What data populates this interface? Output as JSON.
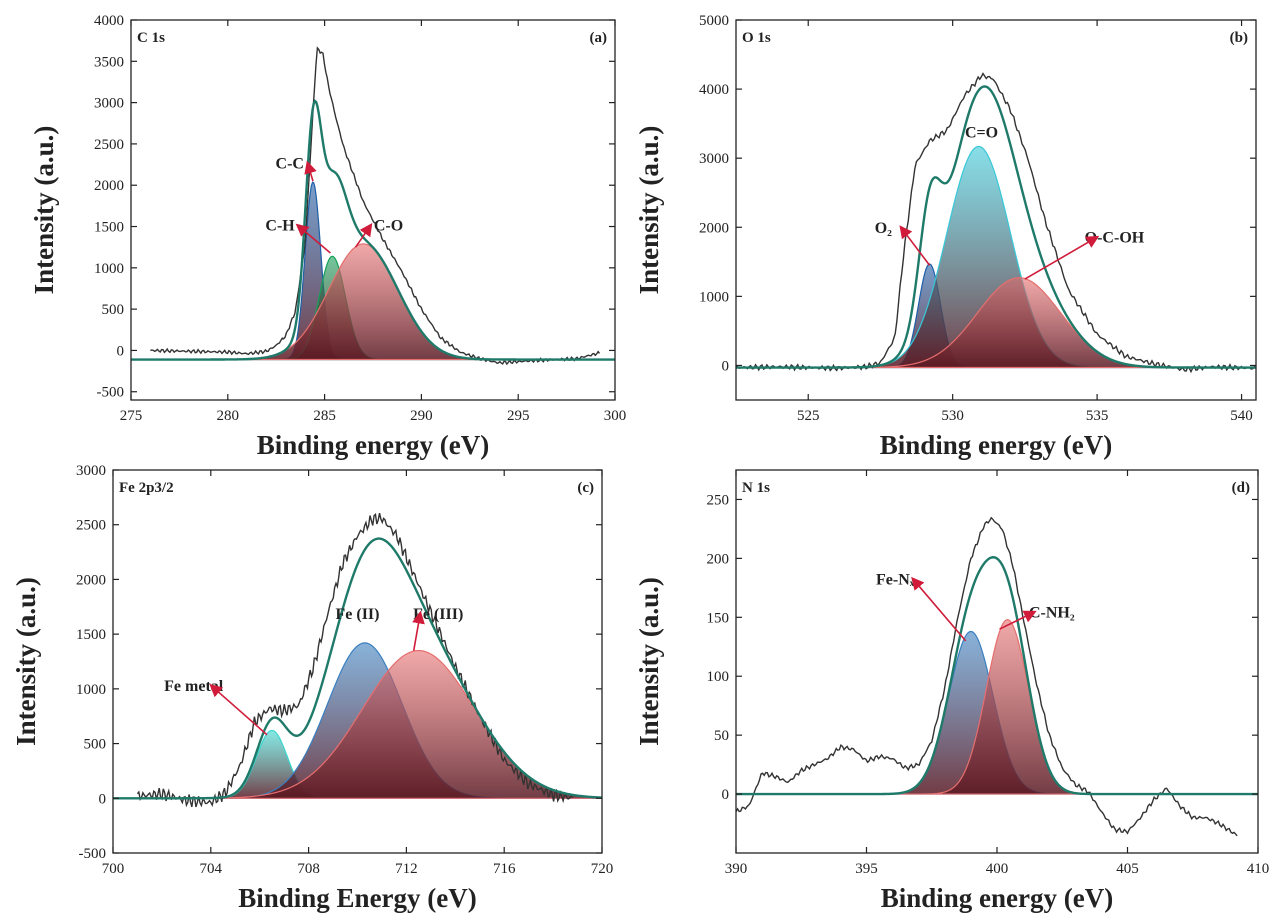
{
  "chart_data": [
    {
      "type": "line",
      "panel": "(a)",
      "element_label": "C 1s",
      "xlabel": "Binding energy (eV)",
      "ylabel": "Intensity (a.u.)",
      "xlim": [
        275,
        300
      ],
      "ylim": [
        -600,
        4000
      ],
      "xticks": [
        275,
        280,
        285,
        290,
        295,
        300
      ],
      "yticks": [
        -500,
        0,
        500,
        1000,
        1500,
        2000,
        2500,
        3000,
        3500,
        4000
      ],
      "baseline": -110,
      "measured_x": [
        276,
        278,
        280,
        281,
        282,
        282.5,
        283,
        283.5,
        284,
        284.3,
        284.6,
        284.9,
        285.2,
        285.6,
        286,
        287,
        288,
        289,
        290,
        291,
        292,
        293,
        294,
        296,
        298,
        299.2
      ],
      "measured_y": [
        0,
        -10,
        -20,
        -40,
        -10,
        60,
        180,
        480,
        1300,
        2500,
        3650,
        3600,
        3200,
        2800,
        2450,
        1800,
        1350,
        950,
        500,
        150,
        -20,
        -100,
        -150,
        -120,
        -100,
        -30
      ],
      "measured_noise": 22,
      "peaks": [
        {
          "name": "C-C",
          "center": 284.4,
          "height": 2150,
          "fwhm": 0.95,
          "color": "#1f5fa8"
        },
        {
          "name": "C-H",
          "center": 285.4,
          "height": 1250,
          "fwhm": 1.6,
          "color": "#17a05a"
        },
        {
          "name": "C-O",
          "center": 287.0,
          "height": 1400,
          "fwhm": 4.2,
          "color": "#e66e6e"
        }
      ],
      "envelope_color": "#1f7a6a",
      "label_positions": [
        {
          "text": "C-C",
          "x": 283.2,
          "y": 2200
        },
        {
          "text": "C-H",
          "x": 282.7,
          "y": 1450
        },
        {
          "text": "C-O",
          "x": 288.3,
          "y": 1450
        }
      ]
    },
    {
      "type": "line",
      "panel": "(b)",
      "element_label": "O 1s",
      "xlabel": "Binding energy (eV)",
      "ylabel": "Intensity (a.u.)",
      "xlim": [
        522.5,
        540.5
      ],
      "ylim": [
        -500,
        5000
      ],
      "xticks": [
        525,
        530,
        535,
        540
      ],
      "yticks": [
        0,
        1000,
        2000,
        3000,
        4000,
        5000
      ],
      "baseline": -30,
      "measured_x": [
        522.5,
        524,
        526,
        527,
        527.5,
        528,
        528.3,
        528.7,
        529.2,
        529.8,
        530.4,
        531,
        531.4,
        532,
        532.6,
        533.2,
        534,
        535,
        536,
        537,
        538,
        539,
        540.5
      ],
      "measured_y": [
        -30,
        -20,
        -40,
        -20,
        40,
        400,
        1600,
        2900,
        3250,
        3400,
        3900,
        4200,
        4150,
        3700,
        3000,
        2100,
        1100,
        450,
        130,
        20,
        -60,
        -20,
        -40
      ],
      "measured_noise": 40,
      "peaks": [
        {
          "name": "O2",
          "center": 529.2,
          "height": 1500,
          "fwhm": 0.9,
          "color": "#1f5fa8"
        },
        {
          "name": "C=O",
          "center": 530.9,
          "height": 3200,
          "fwhm": 2.6,
          "color": "#38c8d8"
        },
        {
          "name": "O-C-OH",
          "center": 532.3,
          "height": 1300,
          "fwhm": 3.4,
          "color": "#e66e6e"
        }
      ],
      "envelope_color": "#1f7a6a",
      "label_positions": [
        {
          "text": "C=O",
          "x": 531.0,
          "y": 3300
        },
        {
          "text": "O₂",
          "x": 527.6,
          "y": 1920
        },
        {
          "text": "O-C-OH",
          "x": 535.6,
          "y": 1780
        }
      ]
    },
    {
      "type": "line",
      "panel": "(c)",
      "element_label": "Fe 2p3/2",
      "xlabel": "Binding Energy (eV)",
      "ylabel": "Intensity (a.u.)",
      "xlim": [
        700,
        720
      ],
      "ylim": [
        -500,
        3000
      ],
      "xticks": [
        700,
        704,
        708,
        712,
        716,
        720
      ],
      "yticks": [
        -500,
        0,
        500,
        1000,
        1500,
        2000,
        2500,
        3000
      ],
      "baseline": 0,
      "measured_x": [
        701,
        702,
        703,
        704,
        704.6,
        705.2,
        705.8,
        706.4,
        707,
        707.6,
        708.2,
        708.8,
        709.4,
        710,
        710.6,
        711,
        711.6,
        712.2,
        713,
        714,
        715,
        716,
        717,
        718,
        718.8
      ],
      "measured_y": [
        20,
        40,
        -20,
        -40,
        50,
        300,
        700,
        820,
        800,
        850,
        1200,
        1700,
        2150,
        2400,
        2550,
        2560,
        2400,
        2100,
        1700,
        1200,
        750,
        350,
        130,
        30,
        0
      ],
      "measured_noise": 60,
      "peaks": [
        {
          "name": "Fe metal",
          "center": 706.5,
          "height": 620,
          "fwhm": 1.5,
          "color": "#38d8d0"
        },
        {
          "name": "Fe (II)",
          "center": 710.3,
          "height": 1420,
          "fwhm": 3.6,
          "color": "#3a7fbf"
        },
        {
          "name": "Fe (III)",
          "center": 712.5,
          "height": 1350,
          "fwhm": 5.4,
          "color": "#e66e6e"
        }
      ],
      "envelope_color": "#1f7a6a",
      "label_positions": [
        {
          "text": "Fe metal",
          "x": 703.3,
          "y": 980
        },
        {
          "text": "Fe (II)",
          "x": 710.0,
          "y": 1640
        },
        {
          "text": "Fe (III)",
          "x": 713.3,
          "y": 1640
        }
      ]
    },
    {
      "type": "line",
      "panel": "(d)",
      "element_label": "N 1s",
      "xlabel": "Binding energy (eV)",
      "ylabel": "Intensity (a.u.)",
      "xlim": [
        390,
        410
      ],
      "ylim": [
        -50,
        275
      ],
      "xticks": [
        390,
        395,
        400,
        405,
        410
      ],
      "yticks": [
        0,
        50,
        100,
        150,
        200,
        250
      ],
      "baseline": 0,
      "measured_x": [
        390,
        390.5,
        391,
        391.5,
        392,
        392.5,
        393,
        393.5,
        394,
        394.5,
        395,
        395.5,
        396,
        396.5,
        397,
        397.5,
        398,
        398.5,
        399,
        399.5,
        399.8,
        400.2,
        400.6,
        401,
        401.5,
        402,
        402.5,
        403,
        403.5,
        404,
        404.5,
        405,
        405.5,
        406,
        406.5,
        407,
        407.5,
        408,
        408.5,
        409.2
      ],
      "measured_y": [
        -15,
        -10,
        18,
        15,
        10,
        20,
        25,
        30,
        40,
        38,
        28,
        32,
        30,
        22,
        25,
        45,
        90,
        150,
        200,
        228,
        234,
        225,
        195,
        150,
        95,
        50,
        22,
        8,
        2,
        -15,
        -30,
        -32,
        -20,
        -5,
        5,
        -10,
        -20,
        -20,
        -25,
        -35
      ],
      "measured_noise": 2,
      "peaks": [
        {
          "name": "Fe-Nx",
          "center": 399.0,
          "height": 138,
          "fwhm": 2.0,
          "color": "#3a7fbf"
        },
        {
          "name": "C-NH2",
          "center": 400.4,
          "height": 148,
          "fwhm": 1.9,
          "color": "#e66e6e"
        }
      ],
      "envelope_color": "#1f7a6a",
      "label_positions": [
        {
          "text": "Fe-Nₓ",
          "x": 396.1,
          "y": 178
        },
        {
          "text": "C-NH₂",
          "x": 402.1,
          "y": 150
        }
      ]
    }
  ]
}
